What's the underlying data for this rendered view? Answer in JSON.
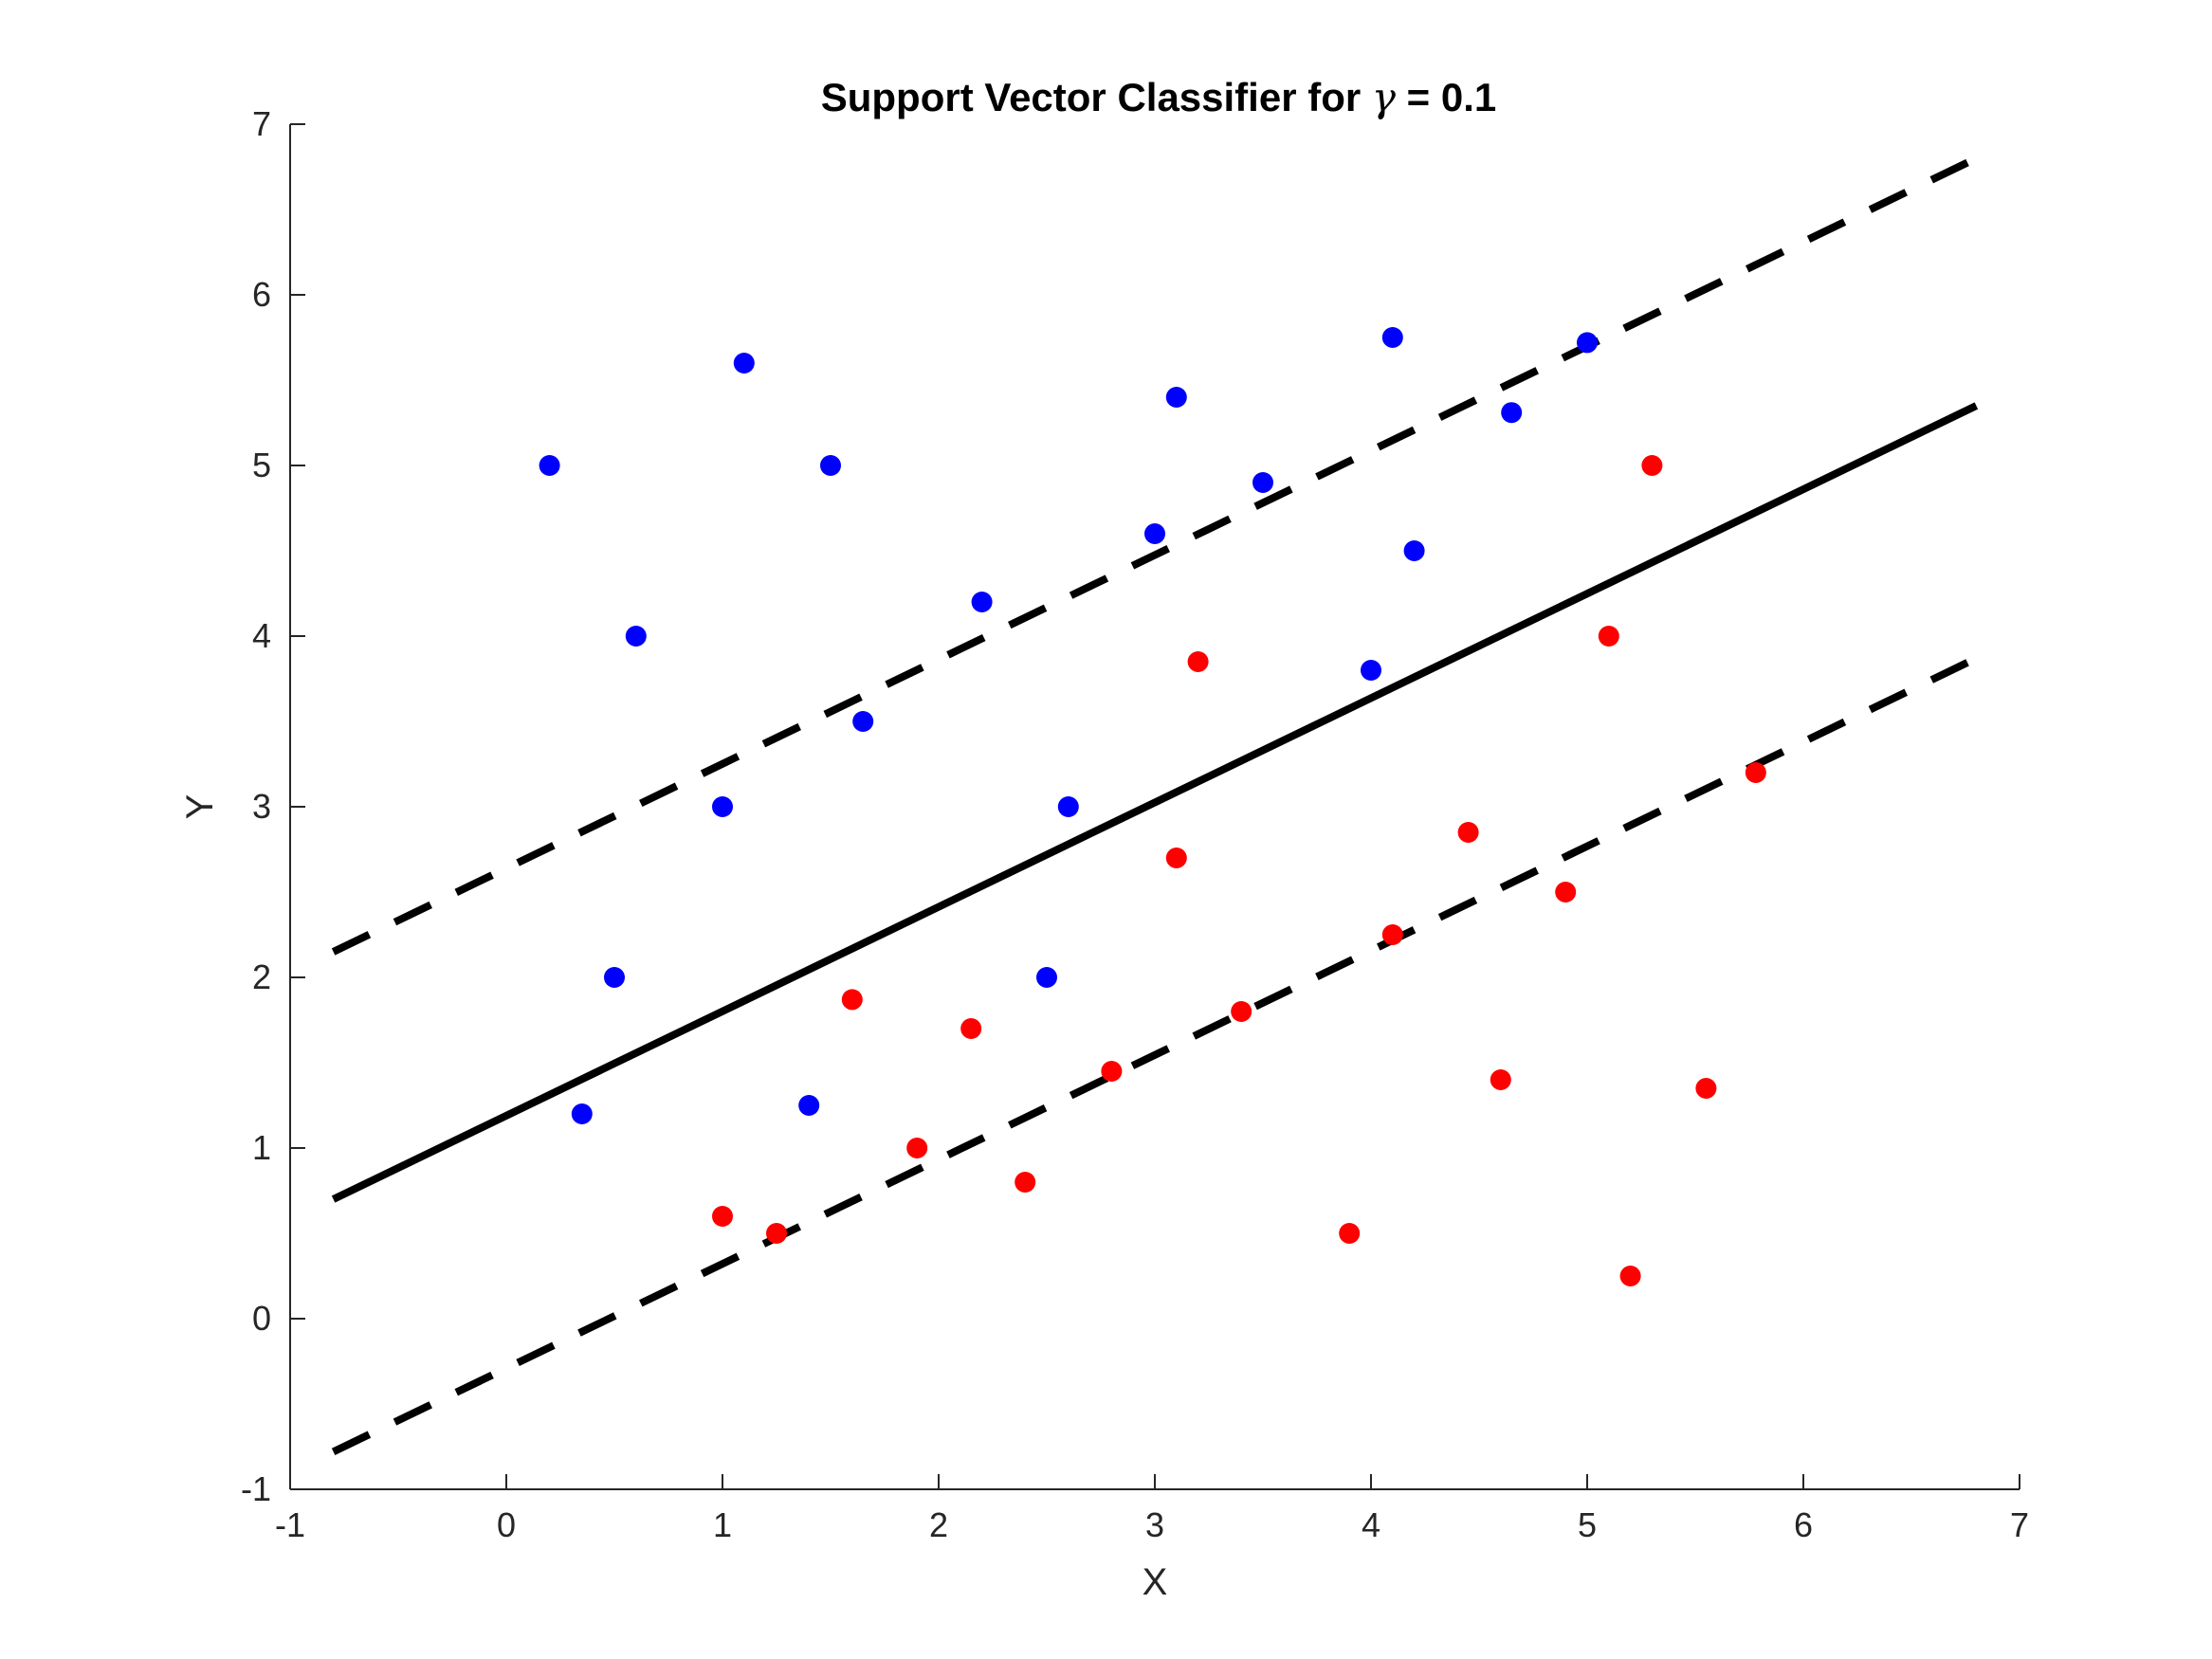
{
  "chart_data": {
    "type": "scatter",
    "title": {
      "prefix": "Support Vector Classifier for ",
      "symbol": "γ",
      "suffix": " = 0.1"
    },
    "xlabel": "X",
    "ylabel": "Y",
    "xlim": [
      -1,
      7
    ],
    "ylim": [
      -1,
      7
    ],
    "xticks": [
      "-1",
      "0",
      "1",
      "2",
      "3",
      "4",
      "5",
      "6",
      "7"
    ],
    "yticks": [
      "-1",
      "0",
      "1",
      "2",
      "3",
      "4",
      "5",
      "6",
      "7"
    ],
    "grid": false,
    "legend": "none",
    "series": [
      {
        "color": "#0000ff",
        "points": [
          [
            0.2,
            5.0
          ],
          [
            0.6,
            4.0
          ],
          [
            1.1,
            5.6
          ],
          [
            1.5,
            5.0
          ],
          [
            1.0,
            3.0
          ],
          [
            0.5,
            2.0
          ],
          [
            0.35,
            1.2
          ],
          [
            1.4,
            1.25
          ],
          [
            1.65,
            3.5
          ],
          [
            2.2,
            4.2
          ],
          [
            2.6,
            3.0
          ],
          [
            2.5,
            2.0
          ],
          [
            3.0,
            4.6
          ],
          [
            3.1,
            5.4
          ],
          [
            3.5,
            4.9
          ],
          [
            4.0,
            3.8
          ],
          [
            4.1,
            5.75
          ],
          [
            4.2,
            4.5
          ],
          [
            4.65,
            5.31
          ],
          [
            5.0,
            5.72
          ]
        ]
      },
      {
        "color": "#ff0000",
        "points": [
          [
            1.0,
            0.6
          ],
          [
            1.25,
            0.5
          ],
          [
            1.6,
            1.87
          ],
          [
            1.9,
            1.0
          ],
          [
            2.15,
            1.7
          ],
          [
            2.4,
            0.8
          ],
          [
            2.8,
            1.45
          ],
          [
            3.1,
            2.7
          ],
          [
            3.2,
            3.85
          ],
          [
            3.4,
            1.8
          ],
          [
            3.9,
            0.5
          ],
          [
            4.1,
            2.25
          ],
          [
            4.45,
            2.85
          ],
          [
            4.6,
            1.4
          ],
          [
            4.9,
            2.5
          ],
          [
            5.1,
            4.0
          ],
          [
            5.2,
            0.25
          ],
          [
            5.3,
            5.0
          ],
          [
            5.55,
            1.35
          ],
          [
            5.78,
            3.2
          ]
        ]
      }
    ],
    "lines": [
      {
        "style": "solid",
        "color": "#000000",
        "x": [
          -0.8,
          6.8
        ],
        "y": [
          0.7,
          5.35
        ]
      },
      {
        "style": "dashed",
        "color": "#000000",
        "x": [
          -0.8,
          6.8
        ],
        "y": [
          2.15,
          6.8
        ]
      },
      {
        "style": "dashed",
        "color": "#000000",
        "x": [
          -0.8,
          6.8
        ],
        "y": [
          -0.78,
          3.87
        ]
      }
    ]
  }
}
